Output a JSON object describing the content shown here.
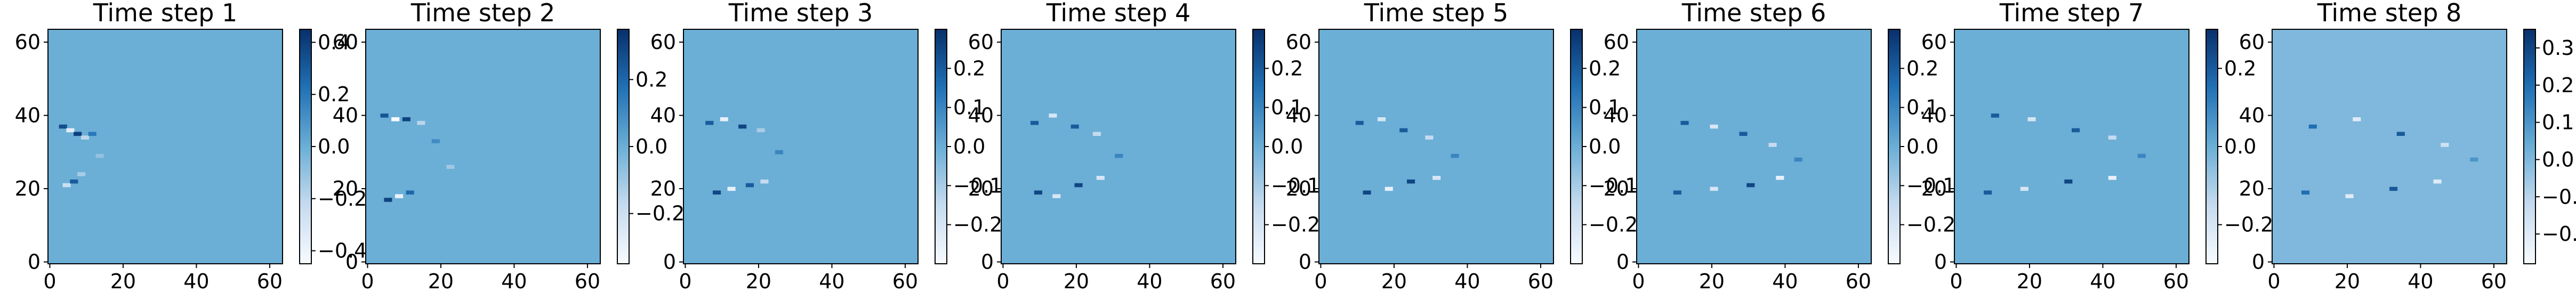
{
  "chart_data": [
    {
      "type": "heatmap",
      "title": "Time step 1",
      "x_ticks": [
        "0",
        "20",
        "40",
        "60"
      ],
      "y_ticks": [
        "0",
        "20",
        "40",
        "60"
      ],
      "xlim": [
        -0.5,
        63.5
      ],
      "ylim": [
        63.5,
        -0.5
      ],
      "grid_size": 64,
      "background_value": 0.0,
      "colorbar": {
        "range": [
          -0.45,
          0.45
        ],
        "ticks": [
          "0.4",
          "0.2",
          "0.0",
          "−0.2",
          "−0.4"
        ],
        "tick_values": [
          0.4,
          0.2,
          0.0,
          -0.2,
          -0.4
        ]
      },
      "features": [
        {
          "x": 4,
          "y": 22,
          "value": -0.25
        },
        {
          "x": 6,
          "y": 23,
          "value": 0.3
        },
        {
          "x": 8,
          "y": 25,
          "value": -0.15
        },
        {
          "x": 3,
          "y": 38,
          "value": 0.35
        },
        {
          "x": 5,
          "y": 37,
          "value": -0.35
        },
        {
          "x": 7,
          "y": 36,
          "value": 0.4
        },
        {
          "x": 9,
          "y": 35,
          "value": -0.2
        },
        {
          "x": 11,
          "y": 36,
          "value": 0.2
        },
        {
          "x": 13,
          "y": 30,
          "value": -0.1
        }
      ]
    },
    {
      "type": "heatmap",
      "title": "Time step 2",
      "x_ticks": [
        "0",
        "20",
        "40",
        "60"
      ],
      "y_ticks": [
        "0",
        "20",
        "40",
        "60"
      ],
      "xlim": [
        -0.5,
        63.5
      ],
      "ylim": [
        63.5,
        -0.5
      ],
      "grid_size": 64,
      "background_value": 0.0,
      "colorbar": {
        "range": [
          -0.35,
          0.35
        ],
        "ticks": [
          "0.2",
          "0.0",
          "−0.2"
        ],
        "tick_values": [
          0.2,
          0.0,
          -0.2
        ]
      },
      "features": [
        {
          "x": 5,
          "y": 18,
          "value": 0.3
        },
        {
          "x": 8,
          "y": 19,
          "value": -0.3
        },
        {
          "x": 11,
          "y": 20,
          "value": 0.2
        },
        {
          "x": 4,
          "y": 41,
          "value": 0.25
        },
        {
          "x": 7,
          "y": 40,
          "value": -0.35
        },
        {
          "x": 10,
          "y": 40,
          "value": 0.3
        },
        {
          "x": 14,
          "y": 39,
          "value": -0.15
        },
        {
          "x": 18,
          "y": 34,
          "value": 0.1
        },
        {
          "x": 22,
          "y": 27,
          "value": -0.1
        }
      ]
    },
    {
      "type": "heatmap",
      "title": "Time step 3",
      "x_ticks": [
        "0",
        "20",
        "40",
        "60"
      ],
      "y_ticks": [
        "0",
        "20",
        "40",
        "60"
      ],
      "xlim": [
        -0.5,
        63.5
      ],
      "ylim": [
        63.5,
        -0.5
      ],
      "grid_size": 64,
      "background_value": 0.0,
      "colorbar": {
        "range": [
          -0.3,
          0.3
        ],
        "ticks": [
          "0.2",
          "0.1",
          "0.0",
          "−0.1",
          "−0.2"
        ],
        "tick_values": [
          0.2,
          0.1,
          0.0,
          -0.1,
          -0.2
        ]
      },
      "features": [
        {
          "x": 8,
          "y": 20,
          "value": 0.25
        },
        {
          "x": 12,
          "y": 21,
          "value": -0.25
        },
        {
          "x": 17,
          "y": 22,
          "value": 0.2
        },
        {
          "x": 21,
          "y": 23,
          "value": -0.15
        },
        {
          "x": 6,
          "y": 39,
          "value": 0.2
        },
        {
          "x": 10,
          "y": 40,
          "value": -0.25
        },
        {
          "x": 15,
          "y": 38,
          "value": 0.25
        },
        {
          "x": 20,
          "y": 37,
          "value": -0.1
        },
        {
          "x": 25,
          "y": 31,
          "value": 0.1
        }
      ]
    },
    {
      "type": "heatmap",
      "title": "Time step 4",
      "x_ticks": [
        "0",
        "20",
        "40",
        "60"
      ],
      "y_ticks": [
        "0",
        "20",
        "40",
        "60"
      ],
      "xlim": [
        -0.5,
        63.5
      ],
      "ylim": [
        63.5,
        -0.5
      ],
      "grid_size": 64,
      "background_value": 0.0,
      "colorbar": {
        "range": [
          -0.3,
          0.3
        ],
        "ticks": [
          "0.2",
          "0.1",
          "0.0",
          "−0.1",
          "−0.2"
        ],
        "tick_values": [
          0.2,
          0.1,
          0.0,
          -0.1,
          -0.2
        ]
      },
      "features": [
        {
          "x": 9,
          "y": 20,
          "value": 0.25
        },
        {
          "x": 14,
          "y": 19,
          "value": -0.2
        },
        {
          "x": 20,
          "y": 22,
          "value": 0.25
        },
        {
          "x": 26,
          "y": 24,
          "value": -0.2
        },
        {
          "x": 8,
          "y": 39,
          "value": 0.2
        },
        {
          "x": 13,
          "y": 41,
          "value": -0.2
        },
        {
          "x": 19,
          "y": 38,
          "value": 0.2
        },
        {
          "x": 25,
          "y": 36,
          "value": -0.15
        },
        {
          "x": 31,
          "y": 30,
          "value": 0.1
        }
      ]
    },
    {
      "type": "heatmap",
      "title": "Time step 5",
      "x_ticks": [
        "0",
        "20",
        "40",
        "60"
      ],
      "y_ticks": [
        "0",
        "20",
        "40",
        "60"
      ],
      "xlim": [
        -0.5,
        63.5
      ],
      "ylim": [
        63.5,
        -0.5
      ],
      "grid_size": 64,
      "background_value": 0.0,
      "colorbar": {
        "range": [
          -0.3,
          0.3
        ],
        "ticks": [
          "0.2",
          "0.1",
          "0.0",
          "−0.1",
          "−0.2"
        ],
        "tick_values": [
          0.2,
          0.1,
          0.0,
          -0.1,
          -0.2
        ]
      },
      "features": [
        {
          "x": 12,
          "y": 20,
          "value": 0.25
        },
        {
          "x": 18,
          "y": 21,
          "value": -0.25
        },
        {
          "x": 24,
          "y": 23,
          "value": 0.25
        },
        {
          "x": 31,
          "y": 24,
          "value": -0.2
        },
        {
          "x": 10,
          "y": 39,
          "value": 0.2
        },
        {
          "x": 16,
          "y": 40,
          "value": -0.2
        },
        {
          "x": 22,
          "y": 37,
          "value": 0.2
        },
        {
          "x": 29,
          "y": 35,
          "value": -0.15
        },
        {
          "x": 36,
          "y": 30,
          "value": 0.1
        }
      ]
    },
    {
      "type": "heatmap",
      "title": "Time step 6",
      "x_ticks": [
        "0",
        "20",
        "40",
        "60"
      ],
      "y_ticks": [
        "0",
        "20",
        "40",
        "60"
      ],
      "xlim": [
        -0.5,
        63.5
      ],
      "ylim": [
        63.5,
        -0.5
      ],
      "grid_size": 64,
      "background_value": 0.0,
      "colorbar": {
        "range": [
          -0.3,
          0.3
        ],
        "ticks": [
          "0.2",
          "0.1",
          "0.0",
          "−0.1",
          "−0.2"
        ],
        "tick_values": [
          0.2,
          0.1,
          0.0,
          -0.1,
          -0.2
        ]
      },
      "features": [
        {
          "x": 10,
          "y": 20,
          "value": 0.2
        },
        {
          "x": 20,
          "y": 21,
          "value": -0.2
        },
        {
          "x": 30,
          "y": 22,
          "value": 0.25
        },
        {
          "x": 38,
          "y": 24,
          "value": -0.25
        },
        {
          "x": 12,
          "y": 39,
          "value": 0.2
        },
        {
          "x": 20,
          "y": 38,
          "value": -0.2
        },
        {
          "x": 28,
          "y": 36,
          "value": 0.2
        },
        {
          "x": 36,
          "y": 33,
          "value": -0.15
        },
        {
          "x": 43,
          "y": 29,
          "value": 0.1
        }
      ]
    },
    {
      "type": "heatmap",
      "title": "Time step 7",
      "x_ticks": [
        "0",
        "20",
        "40",
        "60"
      ],
      "y_ticks": [
        "0",
        "20",
        "40",
        "60"
      ],
      "xlim": [
        -0.5,
        63.5
      ],
      "ylim": [
        63.5,
        -0.5
      ],
      "grid_size": 64,
      "background_value": 0.0,
      "colorbar": {
        "range": [
          -0.3,
          0.3
        ],
        "ticks": [
          "0.2",
          "0.0",
          "−0.2"
        ],
        "tick_values": [
          0.2,
          0.0,
          -0.2
        ]
      },
      "features": [
        {
          "x": 8,
          "y": 20,
          "value": 0.2
        },
        {
          "x": 18,
          "y": 21,
          "value": -0.2
        },
        {
          "x": 30,
          "y": 23,
          "value": 0.25
        },
        {
          "x": 42,
          "y": 24,
          "value": -0.25
        },
        {
          "x": 10,
          "y": 41,
          "value": 0.2
        },
        {
          "x": 20,
          "y": 40,
          "value": -0.2
        },
        {
          "x": 32,
          "y": 37,
          "value": 0.2
        },
        {
          "x": 42,
          "y": 35,
          "value": -0.15
        },
        {
          "x": 50,
          "y": 30,
          "value": 0.1
        }
      ]
    },
    {
      "type": "heatmap",
      "title": "Time step 8",
      "x_ticks": [
        "0",
        "20",
        "40",
        "60"
      ],
      "y_ticks": [
        "0",
        "20",
        "40",
        "60"
      ],
      "xlim": [
        -0.5,
        63.5
      ],
      "ylim": [
        63.5,
        -0.5
      ],
      "grid_size": 64,
      "background_value": 0.0,
      "colorbar": {
        "range": [
          -0.28,
          0.35
        ],
        "ticks": [
          "0.3",
          "0.2",
          "0.1",
          "0.0",
          "−0.1",
          "−0.2"
        ],
        "tick_values": [
          0.3,
          0.2,
          0.1,
          0.0,
          -0.1,
          -0.2
        ]
      },
      "features": [
        {
          "x": 8,
          "y": 20,
          "value": 0.2
        },
        {
          "x": 20,
          "y": 19,
          "value": -0.2
        },
        {
          "x": 32,
          "y": 21,
          "value": 0.25
        },
        {
          "x": 44,
          "y": 23,
          "value": -0.2
        },
        {
          "x": 10,
          "y": 38,
          "value": 0.2
        },
        {
          "x": 22,
          "y": 40,
          "value": -0.2
        },
        {
          "x": 34,
          "y": 36,
          "value": 0.25
        },
        {
          "x": 46,
          "y": 33,
          "value": -0.15
        },
        {
          "x": 54,
          "y": 29,
          "value": 0.1
        }
      ]
    }
  ],
  "colors": {
    "cmap": "Blues",
    "cmap_low": "#f7fbff",
    "cmap_mid": "#6baed6",
    "cmap_high": "#08306b",
    "axis": "#000000"
  }
}
